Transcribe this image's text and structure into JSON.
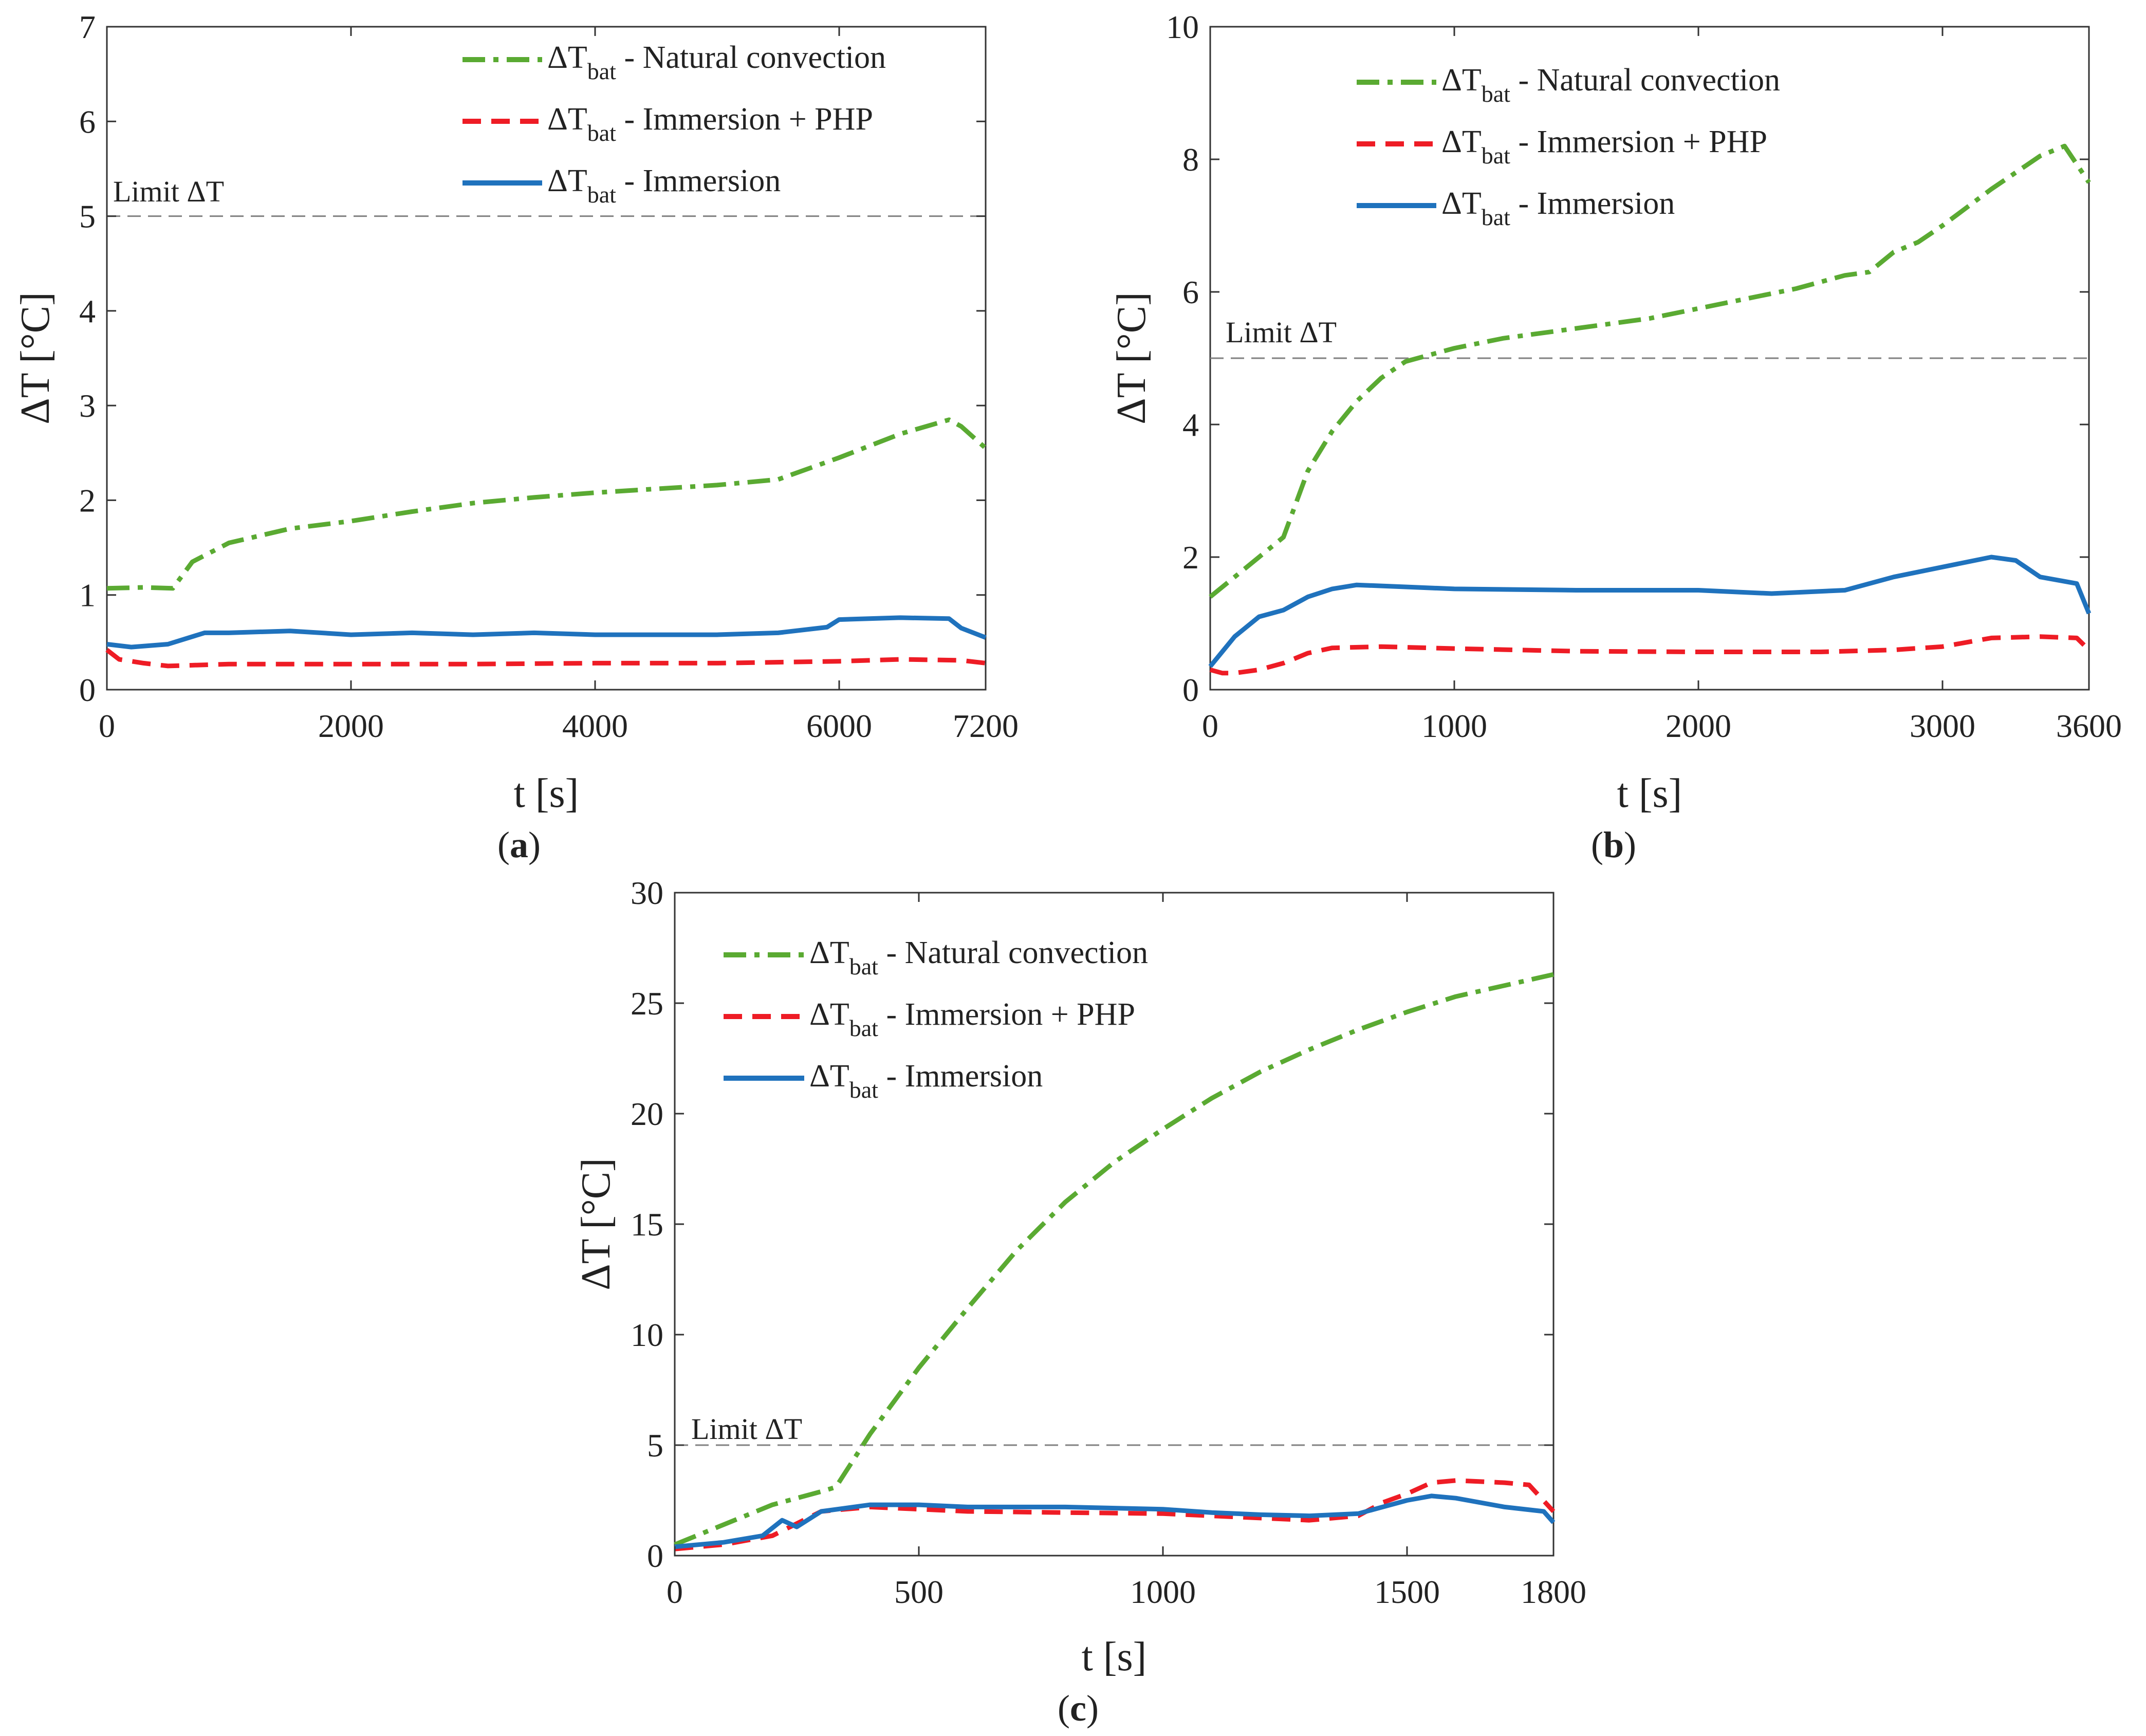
{
  "figure": {
    "colors": {
      "natural": "#5aaa32",
      "php": "#ee1c25",
      "immersion": "#1f72bd",
      "limit": "#808080",
      "axis": "#333333"
    },
    "legend": [
      {
        "main": "ΔT",
        "sub": "bat",
        "rest": " - Natural convection",
        "series": "natural",
        "dash": "dashdot"
      },
      {
        "main": "ΔT",
        "sub": "bat",
        "rest": " - Immersion + PHP",
        "series": "php",
        "dash": "dash"
      },
      {
        "main": "ΔT",
        "sub": "bat",
        "rest": " - Immersion",
        "series": "immersion",
        "dash": "solid"
      }
    ],
    "limit_label": "Limit ΔT"
  },
  "chart_data": [
    {
      "type": "line",
      "caption": "a",
      "xlabel": "t [s]",
      "ylabel": "ΔT [°C]",
      "xlim": [
        0,
        7200
      ],
      "ylim": [
        0,
        7
      ],
      "xticks": [
        0,
        2000,
        4000,
        6000,
        7200
      ],
      "yticks": [
        0,
        1,
        2,
        3,
        4,
        5,
        6,
        7
      ],
      "limit": 5,
      "legend_position": "top-right",
      "series": [
        {
          "key": "natural",
          "x": [
            0,
            300,
            540,
            700,
            1000,
            1500,
            2000,
            2500,
            3000,
            3500,
            4000,
            4500,
            5000,
            5500,
            6000,
            6500,
            6900,
            7000,
            7200
          ],
          "y": [
            1.07,
            1.08,
            1.07,
            1.35,
            1.55,
            1.7,
            1.78,
            1.88,
            1.97,
            2.03,
            2.08,
            2.12,
            2.16,
            2.22,
            2.45,
            2.7,
            2.85,
            2.78,
            2.55
          ]
        },
        {
          "key": "php",
          "x": [
            0,
            100,
            300,
            500,
            1000,
            2000,
            3000,
            4000,
            5000,
            6000,
            6500,
            7000,
            7200
          ],
          "y": [
            0.42,
            0.32,
            0.28,
            0.25,
            0.27,
            0.27,
            0.27,
            0.28,
            0.28,
            0.3,
            0.32,
            0.31,
            0.28
          ]
        },
        {
          "key": "immersion",
          "x": [
            0,
            200,
            500,
            800,
            1000,
            1500,
            2000,
            2500,
            3000,
            3500,
            4000,
            4500,
            5000,
            5500,
            5900,
            6000,
            6500,
            6900,
            7000,
            7200
          ],
          "y": [
            0.48,
            0.45,
            0.48,
            0.6,
            0.6,
            0.62,
            0.58,
            0.6,
            0.58,
            0.6,
            0.58,
            0.58,
            0.58,
            0.6,
            0.66,
            0.74,
            0.76,
            0.75,
            0.65,
            0.55
          ]
        }
      ]
    },
    {
      "type": "line",
      "caption": "b",
      "xlabel": "t [s]",
      "ylabel": "ΔT [°C]",
      "xlim": [
        0,
        3600
      ],
      "ylim": [
        0,
        10
      ],
      "xticks": [
        0,
        1000,
        2000,
        3000,
        3600
      ],
      "yticks": [
        0,
        2,
        4,
        6,
        8,
        10
      ],
      "limit": 5,
      "legend_position": "top-right",
      "series": [
        {
          "key": "natural",
          "x": [
            0,
            100,
            200,
            300,
            400,
            500,
            600,
            700,
            800,
            900,
            1000,
            1200,
            1400,
            1600,
            1800,
            2000,
            2200,
            2400,
            2600,
            2700,
            2800,
            2900,
            3000,
            3200,
            3400,
            3500,
            3600
          ],
          "y": [
            1.4,
            1.7,
            2.0,
            2.3,
            3.3,
            3.9,
            4.35,
            4.7,
            4.95,
            5.05,
            5.15,
            5.3,
            5.4,
            5.5,
            5.6,
            5.75,
            5.9,
            6.05,
            6.25,
            6.3,
            6.6,
            6.75,
            7.0,
            7.55,
            8.05,
            8.2,
            7.65
          ]
        },
        {
          "key": "php",
          "x": [
            0,
            50,
            100,
            200,
            300,
            400,
            500,
            700,
            1000,
            1500,
            2000,
            2500,
            2800,
            3000,
            3200,
            3400,
            3550,
            3600
          ],
          "y": [
            0.3,
            0.25,
            0.25,
            0.3,
            0.4,
            0.55,
            0.63,
            0.65,
            0.62,
            0.58,
            0.57,
            0.57,
            0.6,
            0.65,
            0.78,
            0.8,
            0.78,
            0.6
          ]
        },
        {
          "key": "immersion",
          "x": [
            0,
            100,
            200,
            300,
            400,
            500,
            600,
            800,
            1000,
            1500,
            2000,
            2300,
            2600,
            2800,
            3000,
            3200,
            3300,
            3400,
            3550,
            3600
          ],
          "y": [
            0.35,
            0.8,
            1.1,
            1.2,
            1.4,
            1.52,
            1.58,
            1.55,
            1.52,
            1.5,
            1.5,
            1.45,
            1.5,
            1.7,
            1.85,
            2.0,
            1.95,
            1.7,
            1.6,
            1.15
          ]
        }
      ]
    },
    {
      "type": "line",
      "caption": "c",
      "xlabel": "t [s]",
      "ylabel": "ΔT [°C]",
      "xlim": [
        0,
        1800
      ],
      "ylim": [
        0,
        30
      ],
      "xticks": [
        0,
        500,
        1000,
        1500,
        1800
      ],
      "yticks": [
        0,
        5,
        10,
        15,
        20,
        25,
        30
      ],
      "limit": 5,
      "legend_position": "top-left",
      "series": [
        {
          "key": "natural",
          "x": [
            0,
            100,
            200,
            300,
            330,
            400,
            500,
            600,
            700,
            800,
            900,
            1000,
            1100,
            1200,
            1300,
            1400,
            1500,
            1600,
            1700,
            1800
          ],
          "y": [
            0.5,
            1.4,
            2.3,
            2.9,
            3.1,
            5.5,
            8.5,
            11.2,
            13.8,
            16.0,
            17.8,
            19.3,
            20.7,
            21.9,
            22.9,
            23.8,
            24.6,
            25.3,
            25.8,
            26.3
          ]
        },
        {
          "key": "php",
          "x": [
            0,
            100,
            200,
            300,
            400,
            500,
            600,
            800,
            1000,
            1200,
            1300,
            1400,
            1450,
            1500,
            1550,
            1600,
            1650,
            1700,
            1750,
            1800
          ],
          "y": [
            0.3,
            0.5,
            0.9,
            2.0,
            2.2,
            2.1,
            2.0,
            1.95,
            1.9,
            1.7,
            1.6,
            1.8,
            2.4,
            2.8,
            3.3,
            3.4,
            3.35,
            3.3,
            3.2,
            2.0
          ]
        },
        {
          "key": "immersion",
          "x": [
            0,
            100,
            180,
            220,
            250,
            300,
            400,
            500,
            600,
            800,
            1000,
            1100,
            1200,
            1300,
            1400,
            1450,
            1500,
            1550,
            1600,
            1700,
            1780,
            1800
          ],
          "y": [
            0.4,
            0.6,
            0.9,
            1.6,
            1.3,
            2.0,
            2.3,
            2.3,
            2.2,
            2.2,
            2.1,
            1.95,
            1.85,
            1.8,
            1.9,
            2.2,
            2.5,
            2.7,
            2.6,
            2.2,
            2.0,
            1.5
          ]
        }
      ]
    }
  ]
}
